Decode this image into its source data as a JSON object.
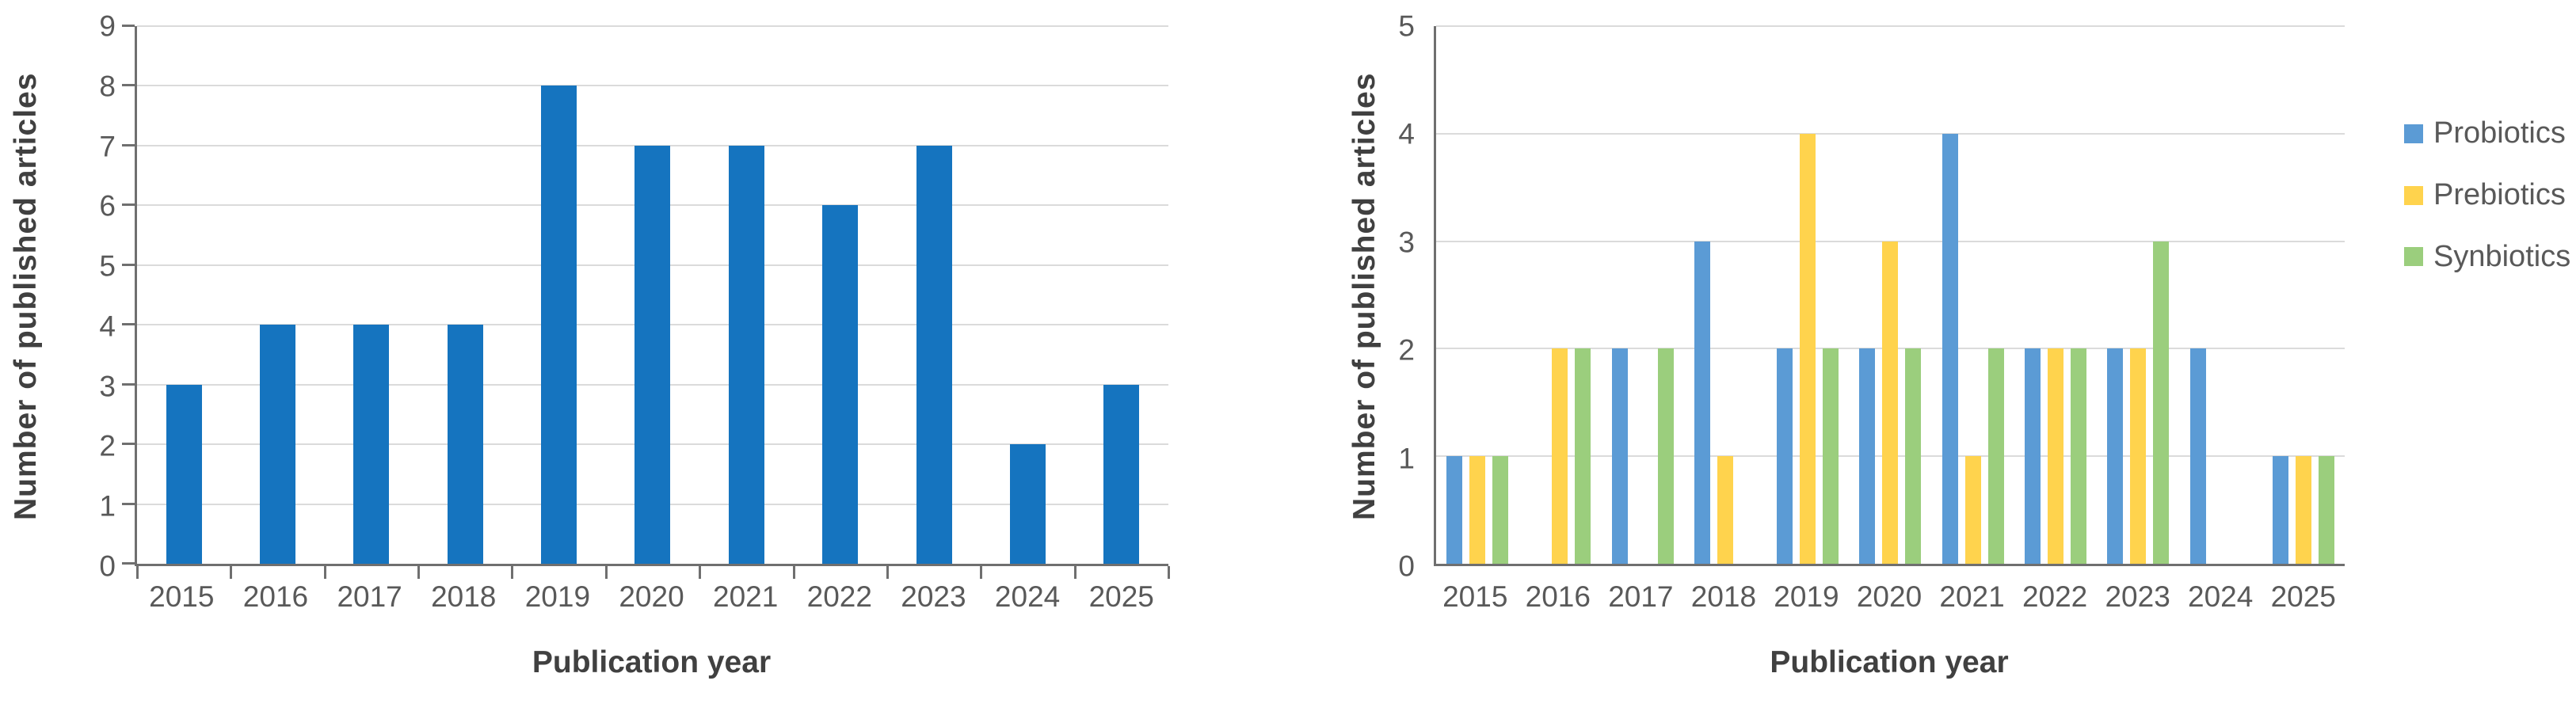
{
  "style": {
    "background": "#FFFFFF",
    "axis_line_color": "#6F6F6F",
    "grid_color": "#DBDBDB",
    "tick_label_color": "#595959",
    "axis_title_color": "#404040",
    "legend_text_color": "#595959"
  },
  "chart_data": [
    {
      "type": "bar",
      "title": "",
      "categories": [
        "2015",
        "2016",
        "2017",
        "2018",
        "2019",
        "2020",
        "2021",
        "2022",
        "2023",
        "2024",
        "2025"
      ],
      "series": [
        {
          "name": "",
          "color": "#1574BF",
          "values": [
            3,
            4,
            4,
            4,
            8,
            7,
            7,
            6,
            7,
            2,
            3
          ]
        }
      ],
      "xlabel": "Publication year",
      "ylabel": "Number of published articles",
      "ylim": [
        0,
        9
      ],
      "ytick_step": 1,
      "grid": true,
      "axis_ticks": true,
      "legend": false
    },
    {
      "type": "bar",
      "title": "",
      "categories": [
        "2015",
        "2016",
        "2017",
        "2018",
        "2019",
        "2020",
        "2021",
        "2022",
        "2023",
        "2024",
        "2025"
      ],
      "series": [
        {
          "name": "Probiotics",
          "color": "#5B9BD5",
          "values": [
            1,
            0,
            2,
            3,
            2,
            2,
            4,
            2,
            2,
            2,
            1
          ]
        },
        {
          "name": "Prebiotics",
          "color": "#FFD34D",
          "values": [
            1,
            2,
            0,
            1,
            4,
            3,
            1,
            2,
            2,
            0,
            1
          ]
        },
        {
          "name": "Synbiotics",
          "color": "#9BCE7D",
          "values": [
            1,
            2,
            2,
            0,
            2,
            2,
            2,
            2,
            3,
            0,
            1
          ]
        }
      ],
      "xlabel": "Publication year",
      "ylabel": "Number of published articles",
      "ylim": [
        0,
        5
      ],
      "ytick_step": 1,
      "grid": true,
      "axis_ticks": false,
      "legend": true,
      "legend_position": "right"
    }
  ]
}
